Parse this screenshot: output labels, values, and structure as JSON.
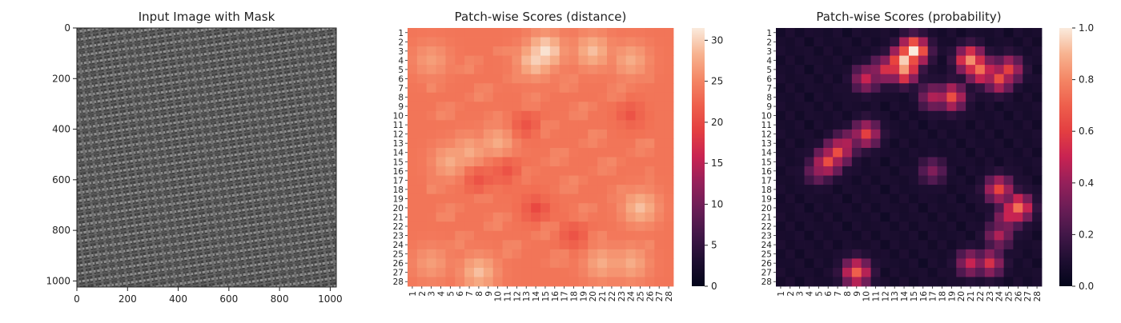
{
  "chart_data": [
    {
      "type": "image",
      "title": "Input Image with Mask",
      "xlim": [
        0,
        1024
      ],
      "ylim": [
        1024,
        0
      ],
      "xticks": [
        "0",
        "200",
        "400",
        "600",
        "800",
        "1000"
      ],
      "yticks": [
        "0",
        "200",
        "400",
        "600",
        "800",
        "1000"
      ],
      "content": "woven fabric texture (grayscale)"
    },
    {
      "type": "heatmap",
      "title": "Patch-wise Scores (distance)",
      "rows": [
        "1",
        "2",
        "3",
        "4",
        "5",
        "6",
        "7",
        "8",
        "9",
        "10",
        "11",
        "12",
        "13",
        "14",
        "15",
        "16",
        "17",
        "18",
        "19",
        "20",
        "21",
        "22",
        "23",
        "24",
        "25",
        "26",
        "27",
        "28"
      ],
      "cols": [
        "1",
        "2",
        "3",
        "4",
        "5",
        "6",
        "7",
        "8",
        "9",
        "10",
        "11",
        "12",
        "13",
        "14",
        "15",
        "16",
        "17",
        "18",
        "19",
        "20",
        "21",
        "22",
        "23",
        "24",
        "25",
        "26",
        "27",
        "28"
      ],
      "colorbar": {
        "vmin": 0,
        "vmax": 31.5,
        "ticks": [
          "0",
          "5",
          "10",
          "15",
          "20",
          "25",
          "30"
        ],
        "colormap": "rocket"
      },
      "edge_value": 20,
      "base_value": 24,
      "hotspots": [
        {
          "row": 3,
          "col": 15,
          "value": 31
        },
        {
          "row": 4,
          "col": 14,
          "value": 30
        },
        {
          "row": 3,
          "col": 20,
          "value": 29
        },
        {
          "row": 4,
          "col": 24,
          "value": 28
        },
        {
          "row": 4,
          "col": 3,
          "value": 27
        },
        {
          "row": 14,
          "col": 7,
          "value": 28
        },
        {
          "row": 13,
          "col": 10,
          "value": 28
        },
        {
          "row": 15,
          "col": 5,
          "value": 28
        },
        {
          "row": 20,
          "col": 25,
          "value": 29
        },
        {
          "row": 26,
          "col": 21,
          "value": 28
        },
        {
          "row": 26,
          "col": 24,
          "value": 28
        },
        {
          "row": 27,
          "col": 8,
          "value": 29
        },
        {
          "row": 26,
          "col": 3,
          "value": 27
        }
      ],
      "coldspots": [
        {
          "row": 20,
          "col": 14,
          "value": 20
        },
        {
          "row": 16,
          "col": 11,
          "value": 21
        },
        {
          "row": 17,
          "col": 8,
          "value": 21
        },
        {
          "row": 11,
          "col": 13,
          "value": 21
        },
        {
          "row": 23,
          "col": 18,
          "value": 21
        },
        {
          "row": 10,
          "col": 24,
          "value": 21
        }
      ]
    },
    {
      "type": "heatmap",
      "title": "Patch-wise Scores (probability)",
      "rows": [
        "1",
        "2",
        "3",
        "4",
        "5",
        "6",
        "7",
        "8",
        "9",
        "10",
        "11",
        "12",
        "13",
        "14",
        "15",
        "16",
        "17",
        "18",
        "19",
        "20",
        "21",
        "22",
        "23",
        "24",
        "25",
        "26",
        "27",
        "28"
      ],
      "cols": [
        "1",
        "2",
        "3",
        "4",
        "5",
        "6",
        "7",
        "8",
        "9",
        "10",
        "11",
        "12",
        "13",
        "14",
        "15",
        "16",
        "17",
        "18",
        "19",
        "20",
        "21",
        "22",
        "23",
        "24",
        "25",
        "26",
        "27",
        "28"
      ],
      "colorbar": {
        "vmin": 0,
        "vmax": 1.0,
        "ticks": [
          "0.0",
          "0.2",
          "0.4",
          "0.6",
          "0.8",
          "1.0"
        ],
        "colormap": "rocket"
      },
      "base_value": 0.05,
      "hotspots": [
        {
          "row": 3,
          "col": 15,
          "value": 1.0
        },
        {
          "row": 4,
          "col": 14,
          "value": 0.95
        },
        {
          "row": 5,
          "col": 14,
          "value": 0.85
        },
        {
          "row": 5,
          "col": 12,
          "value": 0.55
        },
        {
          "row": 6,
          "col": 10,
          "value": 0.5
        },
        {
          "row": 4,
          "col": 21,
          "value": 0.82
        },
        {
          "row": 5,
          "col": 22,
          "value": 0.75
        },
        {
          "row": 6,
          "col": 24,
          "value": 0.65
        },
        {
          "row": 5,
          "col": 25,
          "value": 0.6
        },
        {
          "row": 8,
          "col": 19,
          "value": 0.65
        },
        {
          "row": 8,
          "col": 17,
          "value": 0.45
        },
        {
          "row": 12,
          "col": 10,
          "value": 0.6
        },
        {
          "row": 13,
          "col": 8,
          "value": 0.45
        },
        {
          "row": 14,
          "col": 7,
          "value": 0.65
        },
        {
          "row": 15,
          "col": 6,
          "value": 0.65
        },
        {
          "row": 16,
          "col": 5,
          "value": 0.4
        },
        {
          "row": 16,
          "col": 17,
          "value": 0.35
        },
        {
          "row": 18,
          "col": 24,
          "value": 0.62
        },
        {
          "row": 20,
          "col": 26,
          "value": 0.75
        },
        {
          "row": 21,
          "col": 25,
          "value": 0.5
        },
        {
          "row": 23,
          "col": 24,
          "value": 0.45
        },
        {
          "row": 26,
          "col": 21,
          "value": 0.5
        },
        {
          "row": 26,
          "col": 23,
          "value": 0.55
        },
        {
          "row": 27,
          "col": 9,
          "value": 0.7
        }
      ]
    }
  ]
}
